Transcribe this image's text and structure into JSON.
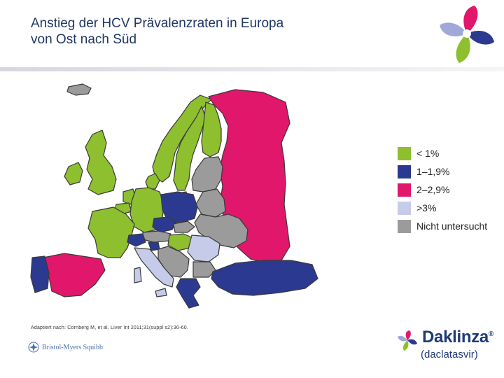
{
  "header": {
    "title_line1": "Anstieg der HCV Prävalenzraten in Europa",
    "title_line2": "von Ost nach Süd"
  },
  "colors": {
    "lt1": "#8dbf2e",
    "r1_19": "#2b3990",
    "r2_29": "#e0176b",
    "gt3": "#c5cbe8",
    "not_studied": "#9b9b9b",
    "title": "#1f3864"
  },
  "legend": [
    {
      "label": "< 1%",
      "color": "#8dbf2e"
    },
    {
      "label": "1–1,9%",
      "color": "#2b3990"
    },
    {
      "label": "2–2,9%",
      "color": "#e0176b"
    },
    {
      "label": ">3%",
      "color": "#c5cbe8"
    },
    {
      "label": "Nicht untersucht",
      "color": "#9b9b9b"
    }
  ],
  "map": {
    "countries": [
      {
        "name": "Norway",
        "category": "lt1"
      },
      {
        "name": "Sweden",
        "category": "lt1"
      },
      {
        "name": "Finland",
        "category": "lt1"
      },
      {
        "name": "Iceland",
        "category": "not_studied"
      },
      {
        "name": "United Kingdom",
        "category": "lt1"
      },
      {
        "name": "Ireland",
        "category": "lt1"
      },
      {
        "name": "Netherlands",
        "category": "lt1"
      },
      {
        "name": "Belgium",
        "category": "lt1"
      },
      {
        "name": "France",
        "category": "lt1"
      },
      {
        "name": "Germany",
        "category": "lt1"
      },
      {
        "name": "Denmark",
        "category": "lt1"
      },
      {
        "name": "Spain",
        "category": "r2_29"
      },
      {
        "name": "Portugal",
        "category": "r1_19"
      },
      {
        "name": "Italy",
        "category": "gt3"
      },
      {
        "name": "Switzerland",
        "category": "r1_19"
      },
      {
        "name": "Austria",
        "category": "not_studied"
      },
      {
        "name": "Poland",
        "category": "r1_19"
      },
      {
        "name": "Czech Republic",
        "category": "r1_19"
      },
      {
        "name": "Slovakia",
        "category": "not_studied"
      },
      {
        "name": "Hungary",
        "category": "lt1"
      },
      {
        "name": "Slovenia",
        "category": "r1_19"
      },
      {
        "name": "Romania",
        "category": "gt3"
      },
      {
        "name": "Bulgaria",
        "category": "not_studied"
      },
      {
        "name": "Greece",
        "category": "r1_19"
      },
      {
        "name": "Turkey",
        "category": "r1_19"
      },
      {
        "name": "Russia",
        "category": "r2_29"
      },
      {
        "name": "Baltic States",
        "category": "not_studied"
      },
      {
        "name": "Belarus",
        "category": "not_studied"
      },
      {
        "name": "Ukraine",
        "category": "not_studied"
      },
      {
        "name": "Balkans",
        "category": "not_studied"
      }
    ]
  },
  "footnote": "Adaptiert nach: Cornberg M, et al. Liver Int 2011;31(suppl s2):30-60.",
  "bms_logo_text": "Bristol-Myers Squibb",
  "brand": {
    "name": "Daklinza",
    "trademark": "®",
    "generic": "(daclatasvir)"
  }
}
